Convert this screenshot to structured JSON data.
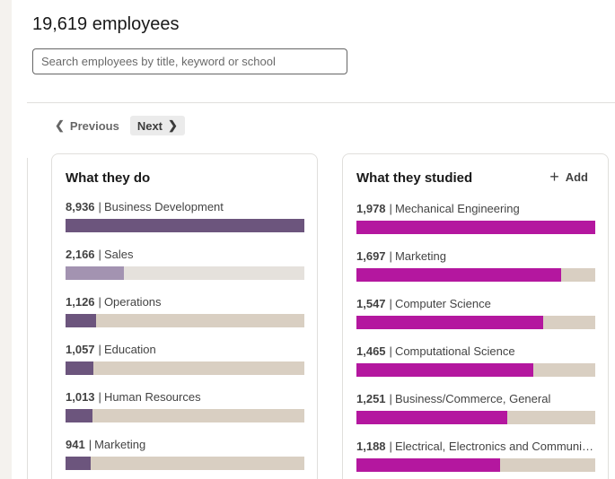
{
  "header": {
    "employee_count": "19,619 employees",
    "search_placeholder": "Search employees by title, keyword or school"
  },
  "pagination": {
    "previous_label": "Previous",
    "next_label": "Next"
  },
  "colors": {
    "what_they_do_fill": "#6c557d",
    "what_they_do_fill_active": "#a393b1",
    "what_they_do_track_active": "#e5e1dc",
    "what_they_studied_fill": "#b4179f",
    "track": "#d9cfc2"
  },
  "what_they_do": {
    "title": "What they do",
    "items": [
      {
        "count": "8,936",
        "label": "Business Development",
        "fraction": 1.0
      },
      {
        "count": "2,166",
        "label": "Sales",
        "fraction": 0.243
      },
      {
        "count": "1,126",
        "label": "Operations",
        "fraction": 0.126
      },
      {
        "count": "1,057",
        "label": "Education",
        "fraction": 0.118
      },
      {
        "count": "1,013",
        "label": "Human Resources",
        "fraction": 0.113
      },
      {
        "count": "941",
        "label": "Marketing",
        "fraction": 0.105
      }
    ]
  },
  "what_they_studied": {
    "title": "What they studied",
    "add_label": "Add",
    "items": [
      {
        "count": "1,978",
        "label": "Mechanical Engineering",
        "fraction": 1.0
      },
      {
        "count": "1,697",
        "label": "Marketing",
        "fraction": 0.858
      },
      {
        "count": "1,547",
        "label": "Computer Science",
        "fraction": 0.782
      },
      {
        "count": "1,465",
        "label": "Computational Science",
        "fraction": 0.741
      },
      {
        "count": "1,251",
        "label": "Business/Commerce, General",
        "fraction": 0.632
      },
      {
        "count": "1,188",
        "label": "Electrical, Electronics and Communications Engineering",
        "fraction": 0.601
      }
    ]
  }
}
